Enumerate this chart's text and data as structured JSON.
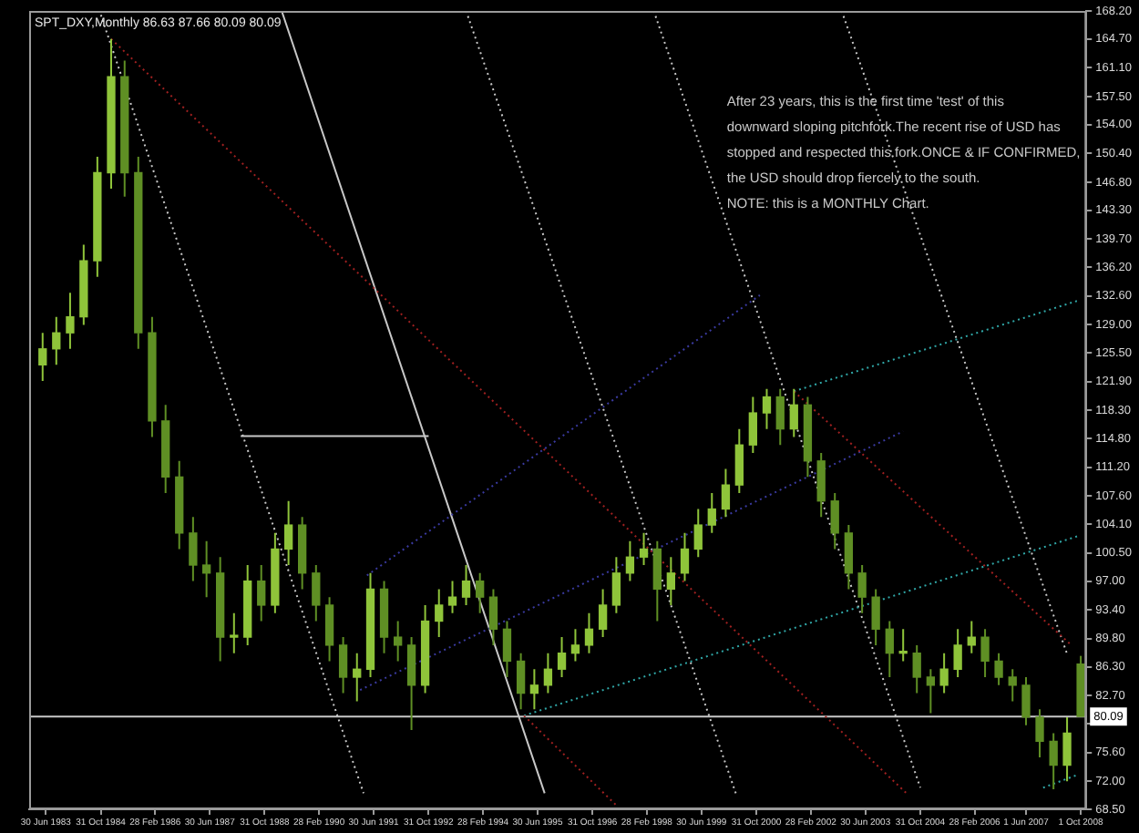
{
  "chart_data": {
    "type": "candlestick",
    "title": "SPT_DXY,Monthly 86.63 87.66 80.09 80.09",
    "colors": [
      "#8fc43a",
      "#8fc43a",
      "#8fc43a",
      "#8fc43a",
      "#8fc43a",
      "#8fc43a",
      "#5f8f24",
      "#5f8f24",
      "#5f8f24",
      "#5f8f24",
      "#5f8f24",
      "#5f8f24",
      "#5f8f24",
      "#5f8f24",
      "#8fc43a",
      "#8fc43a",
      "#5f8f24",
      "#8fc43a",
      "#8fc43a",
      "#5f8f24",
      "#5f8f24",
      "#5f8f24",
      "#5f8f24",
      "#8fc43a",
      "#8fc43a",
      "#5f8f24",
      "#5f8f24",
      "#5f8f24",
      "#8fc43a",
      "#8fc43a",
      "#8fc43a",
      "#8fc43a",
      "#5f8f24",
      "#5f8f24",
      "#5f8f24",
      "#5f8f24",
      "#8fc43a",
      "#8fc43a",
      "#8fc43a",
      "#8fc43a",
      "#8fc43a",
      "#8fc43a",
      "#8fc43a",
      "#8fc43a",
      "#8fc43a",
      "#5f8f24",
      "#8fc43a",
      "#8fc43a",
      "#8fc43a",
      "#8fc43a",
      "#8fc43a",
      "#8fc43a",
      "#8fc43a",
      "#8fc43a",
      "#5f8f24",
      "#8fc43a",
      "#5f8f24",
      "#5f8f24",
      "#5f8f24",
      "#5f8f24",
      "#5f8f24",
      "#5f8f24",
      "#5f8f24",
      "#8fc43a",
      "#5f8f24",
      "#5f8f24",
      "#8fc43a",
      "#8fc43a",
      "#8fc43a",
      "#5f8f24",
      "#5f8f24",
      "#5f8f24",
      "#5f8f24",
      "#5f8f24",
      "#5f8f24",
      "#8fc43a",
      "#5f8f24"
    ],
    "x": [
      "1983-06",
      "1983-10",
      "1984-02",
      "1984-06",
      "1984-10",
      "1985-02",
      "1985-06",
      "1985-10",
      "1986-02",
      "1986-06",
      "1986-10",
      "1987-02",
      "1987-06",
      "1987-10",
      "1988-02",
      "1988-06",
      "1988-10",
      "1989-02",
      "1989-06",
      "1989-10",
      "1990-02",
      "1990-06",
      "1990-10",
      "1991-02",
      "1991-06",
      "1991-10",
      "1992-02",
      "1992-06",
      "1992-10",
      "1993-02",
      "1993-06",
      "1993-10",
      "1994-02",
      "1994-06",
      "1994-10",
      "1995-02",
      "1995-06",
      "1995-10",
      "1996-02",
      "1996-06",
      "1996-10",
      "1997-02",
      "1997-06",
      "1997-10",
      "1998-02",
      "1998-06",
      "1998-10",
      "1999-02",
      "1999-06",
      "1999-10",
      "2000-02",
      "2000-06",
      "2000-10",
      "2001-02",
      "2001-06",
      "2001-10",
      "2002-02",
      "2002-06",
      "2002-10",
      "2003-02",
      "2003-06",
      "2003-10",
      "2004-02",
      "2004-06",
      "2004-10",
      "2005-02",
      "2005-06",
      "2005-10",
      "2006-02",
      "2006-06",
      "2006-10",
      "2007-02",
      "2007-06",
      "2007-10",
      "2008-02",
      "2008-06",
      "2008-10"
    ],
    "ohlc": [
      [
        124,
        128,
        122,
        126
      ],
      [
        126,
        130,
        124,
        128
      ],
      [
        128,
        133,
        126,
        130
      ],
      [
        130,
        139,
        129,
        137
      ],
      [
        137,
        150,
        135,
        148
      ],
      [
        148,
        164.7,
        146,
        160
      ],
      [
        160,
        162,
        145,
        148
      ],
      [
        148,
        150,
        126,
        128
      ],
      [
        128,
        130,
        115,
        117
      ],
      [
        117,
        119,
        108,
        110
      ],
      [
        110,
        112,
        101,
        103
      ],
      [
        103,
        105,
        97,
        99
      ],
      [
        99,
        102,
        95,
        98
      ],
      [
        98,
        100,
        87,
        90
      ],
      [
        90,
        93,
        88,
        90
      ],
      [
        90,
        99,
        89,
        97
      ],
      [
        97,
        99,
        92,
        94
      ],
      [
        94,
        103,
        93,
        101
      ],
      [
        101,
        107,
        99,
        104
      ],
      [
        104,
        105,
        96,
        98
      ],
      [
        98,
        99,
        92,
        94
      ],
      [
        94,
        95,
        87,
        89
      ],
      [
        89,
        90,
        83,
        85
      ],
      [
        85,
        88,
        82,
        86
      ],
      [
        86,
        98,
        85,
        96
      ],
      [
        96,
        97,
        88,
        90
      ],
      [
        90,
        92,
        87,
        89
      ],
      [
        89,
        90,
        78.4,
        84
      ],
      [
        84,
        94,
        83,
        92
      ],
      [
        92,
        96,
        90,
        94
      ],
      [
        94,
        97,
        93,
        95
      ],
      [
        95,
        99,
        94,
        97
      ],
      [
        97,
        98,
        93,
        95
      ],
      [
        95,
        96,
        89,
        91
      ],
      [
        91,
        92,
        85,
        87
      ],
      [
        87,
        88,
        81,
        83
      ],
      [
        83,
        86,
        81,
        84
      ],
      [
        84,
        88,
        83,
        86
      ],
      [
        86,
        90,
        85,
        88
      ],
      [
        88,
        91,
        87,
        89
      ],
      [
        89,
        93,
        88,
        91
      ],
      [
        91,
        96,
        90,
        94
      ],
      [
        94,
        100,
        93,
        98
      ],
      [
        98,
        102,
        97,
        100
      ],
      [
        100,
        103,
        99,
        101
      ],
      [
        101,
        102,
        92,
        96
      ],
      [
        96,
        100,
        94,
        98
      ],
      [
        98,
        103,
        97,
        101
      ],
      [
        101,
        106,
        100,
        104
      ],
      [
        104,
        108,
        103,
        106
      ],
      [
        106,
        111,
        105,
        109
      ],
      [
        109,
        116,
        108,
        114
      ],
      [
        114,
        120,
        113,
        118
      ],
      [
        118,
        121,
        116,
        120
      ],
      [
        120,
        121,
        114,
        116
      ],
      [
        116,
        121,
        115,
        119
      ],
      [
        119,
        120,
        110,
        112
      ],
      [
        112,
        113,
        105,
        107
      ],
      [
        107,
        108,
        101,
        103
      ],
      [
        103,
        104,
        96,
        98
      ],
      [
        98,
        99,
        93,
        95
      ],
      [
        95,
        96,
        89,
        91
      ],
      [
        91,
        92,
        85,
        88
      ],
      [
        88,
        91,
        87,
        88
      ],
      [
        88,
        89,
        83,
        85
      ],
      [
        85,
        86,
        80.5,
        84
      ],
      [
        84,
        88,
        83,
        86
      ],
      [
        86,
        91,
        85,
        89
      ],
      [
        89,
        92,
        88,
        90
      ],
      [
        90,
        91,
        85,
        87
      ],
      [
        87,
        88,
        84,
        85
      ],
      [
        85,
        86,
        82,
        84
      ],
      [
        84,
        85,
        79,
        80
      ],
      [
        80,
        81,
        75,
        77
      ],
      [
        77,
        78,
        71,
        74
      ],
      [
        74,
        80,
        72,
        78
      ],
      [
        86.63,
        87.66,
        80.09,
        80.09
      ]
    ],
    "series": [
      {
        "type": "line",
        "color": "#a02020",
        "line_style": "dotted",
        "x": [
          "1985-02",
          "2004-07"
        ],
        "values": [
          164.7,
          70.5
        ]
      },
      {
        "type": "line",
        "color": "#a02020",
        "line_style": "dotted",
        "x": [
          "2001-10",
          "2008-07"
        ],
        "values": [
          120.7,
          89.1
        ]
      },
      {
        "type": "line",
        "color": "#a02020",
        "line_style": "dotted",
        "x": [
          "1995-03",
          "1997-06"
        ],
        "values": [
          80.2,
          69
        ]
      },
      {
        "type": "line",
        "color": "#30a8a8",
        "line_style": "dotted",
        "x": [
          "1995-03",
          "2008-09"
        ],
        "values": [
          80.2,
          102.6
        ]
      },
      {
        "type": "line",
        "color": "#30a8a8",
        "line_style": "dotted",
        "x": [
          "2001-10",
          "2008-09"
        ],
        "values": [
          120.7,
          132.0
        ]
      },
      {
        "type": "line",
        "color": "#30a8a8",
        "line_style": "dotted",
        "x": [
          "2007-11",
          "2008-09"
        ],
        "values": [
          71.2,
          72.8
        ]
      },
      {
        "type": "line",
        "color": "#3a3aa0",
        "line_style": "dotted",
        "x": [
          "1991-05",
          "2000-12"
        ],
        "values": [
          97.7,
          132.7
        ]
      },
      {
        "type": "line",
        "color": "#3a3aa0",
        "line_style": "dotted",
        "x": [
          "1991-03",
          "2004-06"
        ],
        "values": [
          83.4,
          115.7
        ]
      },
      {
        "type": "line",
        "color": "#c8c8c8",
        "line_style": "solid",
        "x": [
          "1989-04",
          "1995-09"
        ],
        "values": [
          168.2,
          70.5
        ]
      },
      {
        "type": "line",
        "color": "#c8c8c8",
        "line_style": "dotted",
        "x": [
          "1984-11",
          "1991-04"
        ],
        "values": [
          167.7,
          70.5
        ]
      },
      {
        "type": "line",
        "color": "#c8c8c8",
        "line_style": "dotted",
        "x": [
          "1993-10",
          "2000-05"
        ],
        "values": [
          168.2,
          70.5
        ]
      },
      {
        "type": "line",
        "color": "#c8c8c8",
        "line_style": "dotted",
        "x": [
          "1998-05",
          "2004-11"
        ],
        "values": [
          168.2,
          71.2
        ]
      },
      {
        "type": "line",
        "color": "#c8c8c8",
        "line_style": "dotted",
        "x": [
          "2002-12",
          "2008-06"
        ],
        "values": [
          168.2,
          87.9
        ]
      },
      {
        "type": "line",
        "color": "#c8c8c8",
        "line_style": "solid",
        "x": [
          "1988-04",
          "1992-11"
        ],
        "values": [
          115.1,
          115.1
        ]
      }
    ],
    "ref_lines": [
      {
        "axis": "y",
        "value": 80.09,
        "label": "80.09",
        "color": "#c8c8c8"
      }
    ],
    "annotations": [
      "After 23 years, this is the first time 'test' of this",
      "downward sloping pitchfork.The recent rise of USD has",
      "stopped and respected this fork.ONCE & IF CONFIRMED,",
      "the USD should drop fiercely to the south.",
      "NOTE: this is a MONTHLY Chart."
    ],
    "xlim": [
      "1983-02-01",
      "2008-11-20"
    ],
    "xticks": [
      {
        "value": "1983-06-30",
        "label": "30 Jun 1983"
      },
      {
        "value": "1984-10-31",
        "label": "31 Oct 1984"
      },
      {
        "value": "1986-02-28",
        "label": "28 Feb 1986"
      },
      {
        "value": "1987-06-30",
        "label": "30 Jun 1987"
      },
      {
        "value": "1988-10-31",
        "label": "31 Oct 1988"
      },
      {
        "value": "1990-02-28",
        "label": "28 Feb 1990"
      },
      {
        "value": "1991-06-30",
        "label": "30 Jun 1991"
      },
      {
        "value": "1992-10-31",
        "label": "31 Oct 1992"
      },
      {
        "value": "1994-02-28",
        "label": "28 Feb 1994"
      },
      {
        "value": "1995-06-30",
        "label": "30 Jun 1995"
      },
      {
        "value": "1996-10-31",
        "label": "31 Oct 1996"
      },
      {
        "value": "1998-02-28",
        "label": "28 Feb 1998"
      },
      {
        "value": "1999-06-30",
        "label": "30 Jun 1999"
      },
      {
        "value": "2000-10-31",
        "label": "31 Oct 2000"
      },
      {
        "value": "2002-02-28",
        "label": "28 Feb 2002"
      },
      {
        "value": "2003-06-30",
        "label": "30 Jun 2003"
      },
      {
        "value": "2004-10-31",
        "label": "31 Oct 2004"
      },
      {
        "value": "2006-02-28",
        "label": "28 Feb 2006"
      },
      {
        "value": "2007-06-01",
        "label": "1 Jun 2007"
      },
      {
        "value": "2008-10-01",
        "label": "1 Oct 2008"
      }
    ],
    "ylim": [
      68.5,
      168.2
    ],
    "yticks": [
      {
        "value": 168.2,
        "label": "168.20"
      },
      {
        "value": 164.7,
        "label": "164.70"
      },
      {
        "value": 161.1,
        "label": "161.10"
      },
      {
        "value": 157.5,
        "label": "157.50"
      },
      {
        "value": 154,
        "label": "154.00"
      },
      {
        "value": 150.4,
        "label": "150.40"
      },
      {
        "value": 146.8,
        "label": "146.80"
      },
      {
        "value": 143.3,
        "label": "143.30"
      },
      {
        "value": 139.7,
        "label": "139.70"
      },
      {
        "value": 136.2,
        "label": "136.20"
      },
      {
        "value": 132.6,
        "label": "132.60"
      },
      {
        "value": 129,
        "label": "129.00"
      },
      {
        "value": 125.5,
        "label": "125.50"
      },
      {
        "value": 121.9,
        "label": "121.90"
      },
      {
        "value": 118.3,
        "label": "118.30"
      },
      {
        "value": 114.8,
        "label": "114.80"
      },
      {
        "value": 111.2,
        "label": "111.20"
      },
      {
        "value": 107.6,
        "label": "107.60"
      },
      {
        "value": 104.1,
        "label": "104.10"
      },
      {
        "value": 100.5,
        "label": "100.50"
      },
      {
        "value": 97,
        "label": "97.00"
      },
      {
        "value": 93.4,
        "label": "93.40"
      },
      {
        "value": 89.8,
        "label": "89.80"
      },
      {
        "value": 86.3,
        "label": "86.30"
      },
      {
        "value": 82.7,
        "label": "82.70"
      },
      {
        "value": 79.2,
        "label": null
      },
      {
        "value": 75.6,
        "label": "75.60"
      },
      {
        "value": 72,
        "label": "72.00"
      },
      {
        "value": 68.5,
        "label": "68.50"
      }
    ]
  }
}
